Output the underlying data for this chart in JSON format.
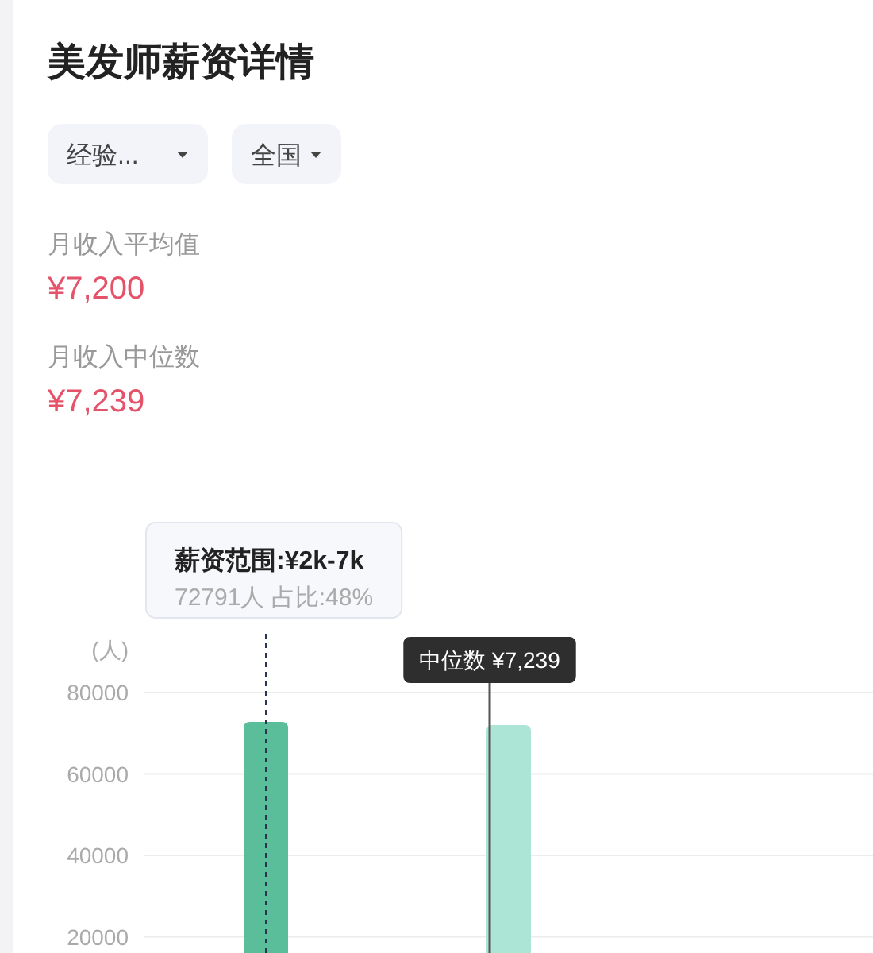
{
  "chart_data": {
    "type": "bar",
    "title": "美发师薪资详情",
    "ylabel": "(人)",
    "categories": [
      null,
      null
    ],
    "values": [
      72791,
      72000
    ],
    "colors": [
      "#5abe9b",
      "#ace4d5"
    ],
    "ylim": [
      16000,
      80000
    ],
    "yticks": [
      20000,
      40000,
      60000,
      80000
    ],
    "grid": "y",
    "annotations": [
      "经验...",
      "全国",
      "月收入平均值",
      "¥7,200",
      "月收入中位数",
      "¥7,239",
      "薪资范围:¥2k-7k",
      "72791人 占比:48%",
      "中位数 ¥7,239"
    ]
  }
}
